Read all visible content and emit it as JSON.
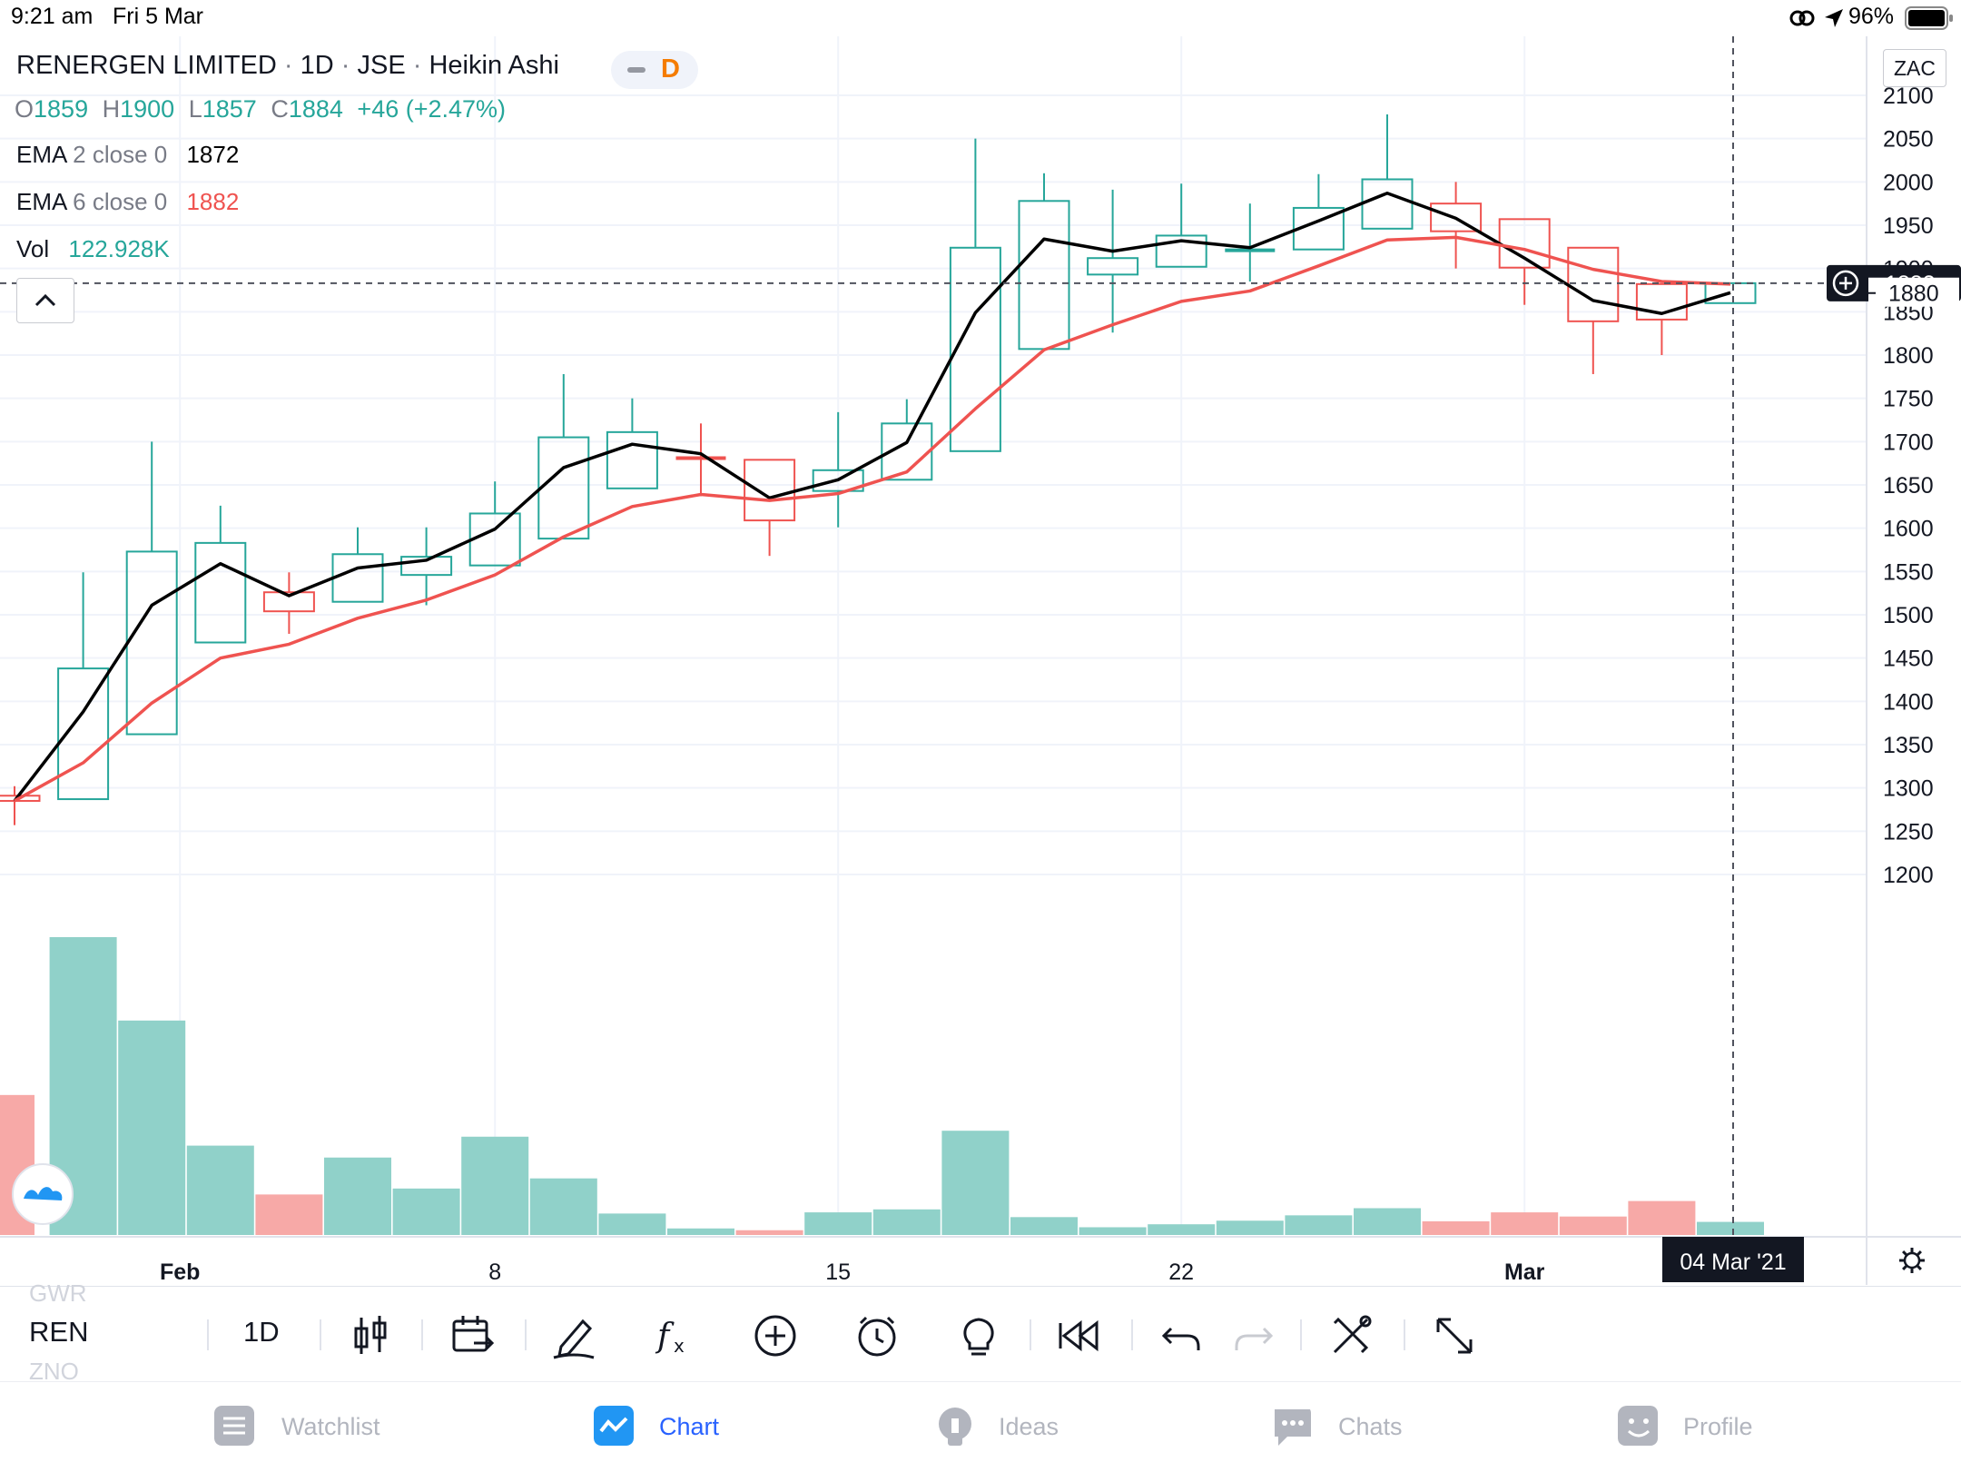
{
  "status_bar": {
    "time": "9:21 am",
    "date": "Fri 5 Mar",
    "battery": "96%"
  },
  "header": {
    "symbol_name": "RENERGEN LIMITED",
    "interval": "1D",
    "exchange": "JSE",
    "chart_type": "Heikin Ashi",
    "separator": "·",
    "interval_badge": "D",
    "currency": "ZAC"
  },
  "ohlc": {
    "o_label": "O",
    "o": "1859",
    "h_label": "H",
    "h": "1900",
    "l_label": "L",
    "l": "1857",
    "c_label": "C",
    "c": "1884",
    "change": "+46 (+2.47%)"
  },
  "indicators": [
    {
      "name": "EMA",
      "params": "2 close 0",
      "value": "1872",
      "color": "#000000"
    },
    {
      "name": "EMA",
      "params": "6 close 0",
      "value": "1882",
      "color": "#ef5350"
    },
    {
      "name": "Vol",
      "params": "",
      "value": "122.928K",
      "color": "#26a69a"
    }
  ],
  "price_badges": {
    "current": "1883",
    "cursor": "1880"
  },
  "crosshair_date": "04 Mar '21",
  "colors": {
    "up": "#26a69a",
    "down": "#ef5350",
    "ema_fast": "#000000",
    "ema_slow": "#ef5350",
    "vol_up": "#90d1c9",
    "vol_down": "#f7a9a7"
  },
  "chart_data": {
    "type": "candlestick",
    "chart_style": "heikin-ashi",
    "ylim": [
      1175,
      2135
    ],
    "y_ticks": [
      "2100",
      "2050",
      "2000",
      "1950",
      "1900",
      "1850",
      "1800",
      "1750",
      "1700",
      "1650",
      "1600",
      "1550",
      "1500",
      "1450",
      "1400",
      "1350",
      "1300",
      "1250",
      "1200"
    ],
    "x_ticks": [
      {
        "label": "Feb",
        "index": 2
      },
      {
        "label": "8",
        "index": 7
      },
      {
        "label": "15",
        "index": 12
      },
      {
        "label": "22",
        "index": 17
      },
      {
        "label": "Mar",
        "index": 22
      }
    ],
    "candles": [
      {
        "o": 1291,
        "h": 1302,
        "l": 1257,
        "c": 1285
      },
      {
        "o": 1287,
        "h": 1549,
        "l": 1287,
        "c": 1438
      },
      {
        "o": 1362,
        "h": 1700,
        "l": 1362,
        "c": 1573
      },
      {
        "o": 1468,
        "h": 1626,
        "l": 1468,
        "c": 1583
      },
      {
        "o": 1526,
        "h": 1549,
        "l": 1478,
        "c": 1504
      },
      {
        "o": 1515,
        "h": 1601,
        "l": 1515,
        "c": 1570
      },
      {
        "o": 1546,
        "h": 1601,
        "l": 1511,
        "c": 1567
      },
      {
        "o": 1557,
        "h": 1654,
        "l": 1557,
        "c": 1617
      },
      {
        "o": 1588,
        "h": 1778,
        "l": 1588,
        "c": 1705
      },
      {
        "o": 1646,
        "h": 1750,
        "l": 1646,
        "c": 1711
      },
      {
        "o": 1681,
        "h": 1721,
        "l": 1637,
        "c": 1679
      },
      {
        "o": 1679,
        "h": 1679,
        "l": 1568,
        "c": 1609
      },
      {
        "o": 1643,
        "h": 1734,
        "l": 1601,
        "c": 1667
      },
      {
        "o": 1656,
        "h": 1749,
        "l": 1656,
        "c": 1721
      },
      {
        "o": 1689,
        "h": 2050,
        "l": 1689,
        "c": 1924
      },
      {
        "o": 1807,
        "h": 2010,
        "l": 1807,
        "c": 1978
      },
      {
        "o": 1893,
        "h": 1991,
        "l": 1826,
        "c": 1912
      },
      {
        "o": 1902,
        "h": 1998,
        "l": 1902,
        "c": 1938
      },
      {
        "o": 1919,
        "h": 1975,
        "l": 1885,
        "c": 1921
      },
      {
        "o": 1922,
        "h": 2009,
        "l": 1922,
        "c": 1970
      },
      {
        "o": 1946,
        "h": 2078,
        "l": 1946,
        "c": 2003
      },
      {
        "o": 1975,
        "h": 2000,
        "l": 1900,
        "c": 1943
      },
      {
        "o": 1957,
        "h": 1957,
        "l": 1858,
        "c": 1901
      },
      {
        "o": 1924,
        "h": 1924,
        "l": 1778,
        "c": 1839
      },
      {
        "o": 1882,
        "h": 1882,
        "l": 1800,
        "c": 1841
      },
      {
        "o": 1860,
        "h": 1884,
        "l": 1860,
        "c": 1883
      }
    ],
    "series": [
      {
        "name": "EMA 2 close 0",
        "values": [
          1285,
          1388,
          1511,
          1559,
          1522,
          1554,
          1563,
          1599,
          1670,
          1697,
          1686,
          1635,
          1656,
          1699,
          1849,
          1934,
          1920,
          1932,
          1924,
          1955,
          1987,
          1958,
          1912,
          1863,
          1848,
          1872
        ]
      },
      {
        "name": "EMA 6 close 0",
        "values": [
          1285,
          1329,
          1398,
          1450,
          1466,
          1496,
          1517,
          1546,
          1590,
          1625,
          1639,
          1632,
          1640,
          1665,
          1738,
          1806,
          1835,
          1862,
          1874,
          1903,
          1933,
          1936,
          1922,
          1899,
          1885,
          1882
        ]
      },
      {
        "name": "Vol",
        "values": [
          235,
          500,
          360,
          150,
          68,
          130,
          78,
          165,
          95,
          36,
          11,
          8,
          38,
          43,
          175,
          30,
          13,
          18,
          24,
          33,
          45,
          23,
          38,
          31,
          57,
          22
        ]
      }
    ],
    "volume_direction": [
      "down",
      "up",
      "up",
      "up",
      "down",
      "up",
      "up",
      "up",
      "up",
      "up",
      "up",
      "down",
      "up",
      "up",
      "up",
      "up",
      "up",
      "up",
      "up",
      "up",
      "up",
      "down",
      "down",
      "down",
      "down",
      "up"
    ]
  },
  "toolbar": {
    "symbol": "REN",
    "ghost_above": "GWR",
    "ghost_below": "ZNO",
    "interval": "1D",
    "tools": [
      "indicators-chart-type-icon",
      "compare-icon",
      "drawing-pen-icon",
      "function-icon",
      "add-icon",
      "alarm-icon",
      "idea-bulb-icon",
      "replay-icon",
      "undo-icon",
      "redo-icon",
      "tools-icon",
      "fullscreen-icon"
    ]
  },
  "tabs": [
    {
      "label": "Watchlist",
      "icon": "watchlist-icon"
    },
    {
      "label": "Chart",
      "icon": "chart-icon"
    },
    {
      "label": "Ideas",
      "icon": "ideas-icon"
    },
    {
      "label": "Chats",
      "icon": "chats-icon"
    },
    {
      "label": "Profile",
      "icon": "profile-icon"
    }
  ]
}
